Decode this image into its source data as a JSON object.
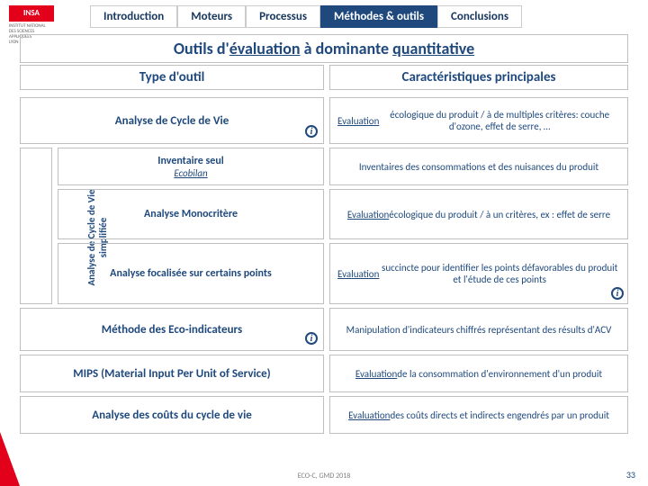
{
  "logo": "INSA",
  "logo_sub": "INSTITUT NATIONAL\nDES SCIENCES\nAPPLIQUÉES\nLYON",
  "nav": {
    "t1": "Introduction",
    "t2": "Moteurs",
    "t3": "Processus",
    "t4": "Méthodes & outils",
    "t5": "Conclusions"
  },
  "subtitle_pre": "Outils d'",
  "subtitle_u1": "évaluation",
  "subtitle_mid": " à dominante ",
  "subtitle_u2": "quantitative",
  "header1": "Type d'outil",
  "header2": "Caractéristiques principales",
  "sidebar_l1": "Analyse de Cycle de Vie",
  "sidebar_l2": "simplifiée",
  "rows": [
    {
      "t": "Analyse de Cycle de Vie",
      "d": "<u>Evaluation</u> écologique du produit / à de multiples critères: couche d'ozone, effet de serre, …",
      "info_after": true,
      "h": 52
    },
    {
      "t": "Inventaire seul",
      "em": "Ecobilan",
      "d": "Inventaires des consommations et des nuisances du produit",
      "sub": true,
      "h": 42
    },
    {
      "t": "Analyse Monocritère",
      "d": "<u>Evaluation</u> écologique du produit / à un critères, ex : effet de serre",
      "sub": true,
      "h": 56
    },
    {
      "t": "Analyse focalisée sur certains points",
      "d": "<u>Evaluation</u> succincte pour identifier les points défavorables du produit et l'étude de ces points",
      "sub": true,
      "h": 68,
      "info_c2": true
    },
    {
      "t": "Méthode des Eco-indicateurs",
      "d": "Manipulation d'indicateurs chiffrés représentant des résults d'ACV",
      "info_after": true,
      "h": 48
    },
    {
      "t": "MIPS (Material Input Per Unit of Service)",
      "d": "<u>Evaluation</u> de la consommation d'environnement d'un produit",
      "h": 42
    },
    {
      "t": "Analyse des coûts du cycle de vie",
      "d": "<u>Evaluation</u> des coûts directs et indirects engendrés par un produit",
      "h": 42
    }
  ],
  "footer_center": "ECO-C, GMD 2018",
  "page_num": "33",
  "colors": {
    "brand_blue": "#1f497d",
    "brand_red": "#e2001a",
    "border": "#bfbfbf"
  }
}
